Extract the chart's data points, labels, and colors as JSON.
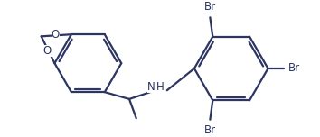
{
  "bg_color": "#ffffff",
  "line_color": "#2d3561",
  "line_width": 1.6,
  "font_size": 8.5,
  "figsize": [
    3.54,
    1.52
  ],
  "dpi": 100,
  "xlim": [
    0,
    354
  ],
  "ylim": [
    0,
    152
  ]
}
